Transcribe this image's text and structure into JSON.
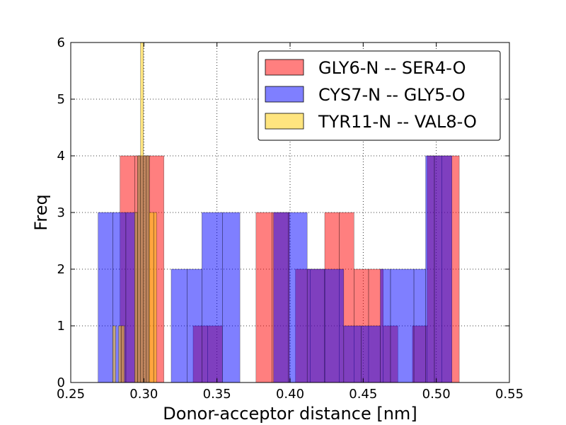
{
  "chart_data": {
    "type": "bar",
    "title": "",
    "xlabel": "Donor-acceptor distance [nm]",
    "ylabel": "Freq",
    "xlim": [
      0.25,
      0.55
    ],
    "ylim": [
      0,
      6
    ],
    "xticks": [
      "0.25",
      "0.30",
      "0.35",
      "0.40",
      "0.45",
      "0.50",
      "0.55"
    ],
    "yticks": [
      "0",
      "1",
      "2",
      "3",
      "4",
      "5",
      "6"
    ],
    "grid": true,
    "legend_position": "top-right",
    "series": [
      {
        "name": "GLY6-N -- SER4-O",
        "color": "#ff0000",
        "opacity": 0.5,
        "bins": [
          {
            "x0": 0.2837,
            "x1": 0.2937,
            "y": 4
          },
          {
            "x0": 0.2937,
            "x1": 0.3037,
            "y": 4
          },
          {
            "x0": 0.3037,
            "x1": 0.3137,
            "y": 4
          },
          {
            "x0": 0.3337,
            "x1": 0.3437,
            "y": 1
          },
          {
            "x0": 0.3437,
            "x1": 0.3537,
            "y": 1
          },
          {
            "x0": 0.3767,
            "x1": 0.3877,
            "y": 3
          },
          {
            "x0": 0.3877,
            "x1": 0.3997,
            "y": 3
          },
          {
            "x0": 0.4037,
            "x1": 0.4137,
            "y": 2
          },
          {
            "x0": 0.4137,
            "x1": 0.4237,
            "y": 2
          },
          {
            "x0": 0.4237,
            "x1": 0.4337,
            "y": 3
          },
          {
            "x0": 0.4337,
            "x1": 0.4437,
            "y": 3
          },
          {
            "x0": 0.4437,
            "x1": 0.4537,
            "y": 2
          },
          {
            "x0": 0.4537,
            "x1": 0.4637,
            "y": 2
          },
          {
            "x0": 0.4637,
            "x1": 0.4737,
            "y": 1
          },
          {
            "x0": 0.4837,
            "x1": 0.4937,
            "y": 1
          },
          {
            "x0": 0.4937,
            "x1": 0.5037,
            "y": 4
          },
          {
            "x0": 0.5037,
            "x1": 0.5157,
            "y": 4
          }
        ]
      },
      {
        "name": "CYS7-N -- GLY5-O",
        "color": "#0000ff",
        "opacity": 0.5,
        "bins": [
          {
            "x0": 0.2687,
            "x1": 0.2787,
            "y": 3
          },
          {
            "x0": 0.2787,
            "x1": 0.2877,
            "y": 3
          },
          {
            "x0": 0.2877,
            "x1": 0.2957,
            "y": 3
          },
          {
            "x0": 0.2957,
            "x1": 0.3037,
            "y": 4
          },
          {
            "x0": 0.3187,
            "x1": 0.3297,
            "y": 2
          },
          {
            "x0": 0.3297,
            "x1": 0.3397,
            "y": 2
          },
          {
            "x0": 0.3397,
            "x1": 0.3537,
            "y": 3
          },
          {
            "x0": 0.3537,
            "x1": 0.3657,
            "y": 3
          },
          {
            "x0": 0.3887,
            "x1": 0.3987,
            "y": 3
          },
          {
            "x0": 0.3987,
            "x1": 0.4117,
            "y": 3
          },
          {
            "x0": 0.4117,
            "x1": 0.4237,
            "y": 2
          },
          {
            "x0": 0.4237,
            "x1": 0.4367,
            "y": 2
          },
          {
            "x0": 0.4367,
            "x1": 0.4487,
            "y": 1
          },
          {
            "x0": 0.4487,
            "x1": 0.4617,
            "y": 1
          },
          {
            "x0": 0.4617,
            "x1": 0.4687,
            "y": 2
          },
          {
            "x0": 0.4687,
            "x1": 0.4847,
            "y": 2
          },
          {
            "x0": 0.4847,
            "x1": 0.4927,
            "y": 2
          },
          {
            "x0": 0.4927,
            "x1": 0.4987,
            "y": 4
          },
          {
            "x0": 0.4987,
            "x1": 0.5107,
            "y": 4
          }
        ]
      },
      {
        "name": "TYR11-N -- VAL8-O",
        "color": "#ffcc00",
        "opacity": 0.5,
        "bins": [
          {
            "x0": 0.2787,
            "x1": 0.2807,
            "y": 1
          },
          {
            "x0": 0.2827,
            "x1": 0.2847,
            "y": 1
          },
          {
            "x0": 0.2847,
            "x1": 0.2867,
            "y": 1
          },
          {
            "x0": 0.2937,
            "x1": 0.2957,
            "y": 3
          },
          {
            "x0": 0.2957,
            "x1": 0.2977,
            "y": 4
          },
          {
            "x0": 0.2977,
            "x1": 0.2997,
            "y": 6
          },
          {
            "x0": 0.2997,
            "x1": 0.3017,
            "y": 4
          },
          {
            "x0": 0.3017,
            "x1": 0.3037,
            "y": 4
          },
          {
            "x0": 0.3037,
            "x1": 0.3067,
            "y": 3
          },
          {
            "x0": 0.3067,
            "x1": 0.3087,
            "y": 3
          }
        ]
      }
    ]
  }
}
